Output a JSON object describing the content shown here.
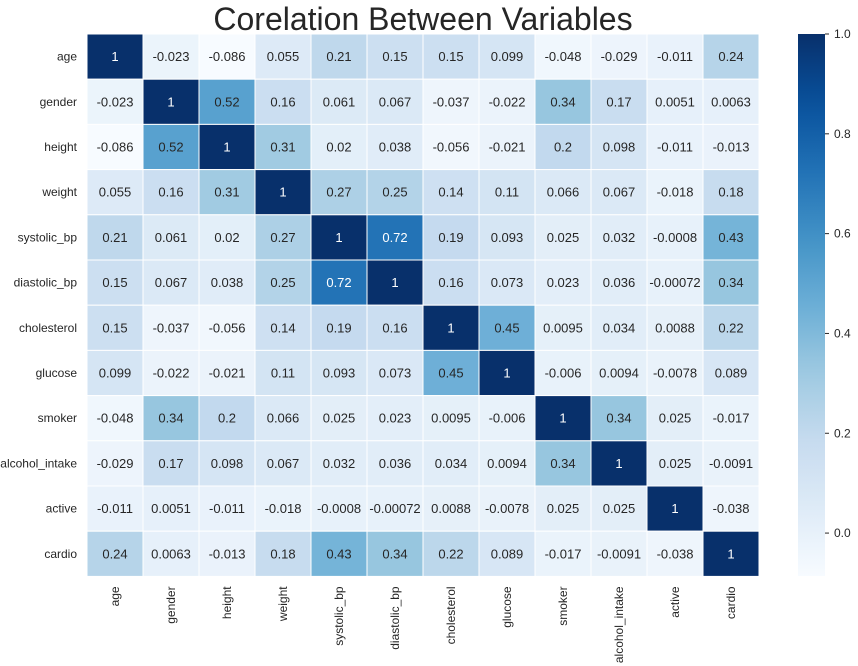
{
  "chart_data": {
    "type": "heatmap",
    "title": "Corelation Between Variables",
    "rows": [
      "age",
      "gender",
      "height",
      "weight",
      "systolic_bp",
      "diastolic_bp",
      "cholesterol",
      "glucose",
      "smoker",
      "alcohol_intake",
      "active",
      "cardio"
    ],
    "columns": [
      "age",
      "gender",
      "height",
      "weight",
      "systolic_bp",
      "diastolic_bp",
      "cholesterol",
      "glucose",
      "smoker",
      "alcohol_intake",
      "active",
      "cardio"
    ],
    "values": [
      [
        1,
        -0.023,
        -0.086,
        0.055,
        0.21,
        0.15,
        0.15,
        0.099,
        -0.048,
        -0.029,
        -0.011,
        0.24
      ],
      [
        -0.023,
        1,
        0.52,
        0.16,
        0.061,
        0.067,
        -0.037,
        -0.022,
        0.34,
        0.17,
        0.0051,
        0.0063
      ],
      [
        -0.086,
        0.52,
        1,
        0.31,
        0.02,
        0.038,
        -0.056,
        -0.021,
        0.2,
        0.098,
        -0.011,
        -0.013
      ],
      [
        0.055,
        0.16,
        0.31,
        1,
        0.27,
        0.25,
        0.14,
        0.11,
        0.066,
        0.067,
        -0.018,
        0.18
      ],
      [
        0.21,
        0.061,
        0.02,
        0.27,
        1,
        0.72,
        0.19,
        0.093,
        0.025,
        0.032,
        -0.0008,
        0.43
      ],
      [
        0.15,
        0.067,
        0.038,
        0.25,
        0.72,
        1,
        0.16,
        0.073,
        0.023,
        0.036,
        -0.00072,
        0.34
      ],
      [
        0.15,
        -0.037,
        -0.056,
        0.14,
        0.19,
        0.16,
        1,
        0.45,
        0.0095,
        0.034,
        0.0088,
        0.22
      ],
      [
        0.099,
        -0.022,
        -0.021,
        0.11,
        0.093,
        0.073,
        0.45,
        1,
        -0.006,
        0.0094,
        -0.0078,
        0.089
      ],
      [
        -0.048,
        0.34,
        0.2,
        0.066,
        0.025,
        0.023,
        0.0095,
        -0.006,
        1,
        0.34,
        0.025,
        -0.017
      ],
      [
        -0.029,
        0.17,
        0.098,
        0.067,
        0.032,
        0.036,
        0.034,
        0.0094,
        0.34,
        1,
        0.025,
        -0.0091
      ],
      [
        -0.011,
        0.0051,
        -0.011,
        -0.018,
        -0.0008,
        -0.00072,
        0.0088,
        -0.0078,
        0.025,
        0.025,
        1,
        -0.038
      ],
      [
        0.24,
        0.0063,
        -0.013,
        0.18,
        0.43,
        0.34,
        0.22,
        0.089,
        -0.017,
        -0.0091,
        -0.038,
        1
      ]
    ],
    "colormap": "Blues",
    "colorbar": {
      "min": -0.086,
      "max": 1.0,
      "ticks": [
        0.0,
        0.2,
        0.4,
        0.6,
        0.8,
        1.0
      ],
      "tick_labels": [
        "0.0",
        "0.2",
        "0.4",
        "0.6",
        "0.8",
        "1.0"
      ]
    },
    "annotations": "cell values shown",
    "cell_border_color": "#ffffff"
  }
}
